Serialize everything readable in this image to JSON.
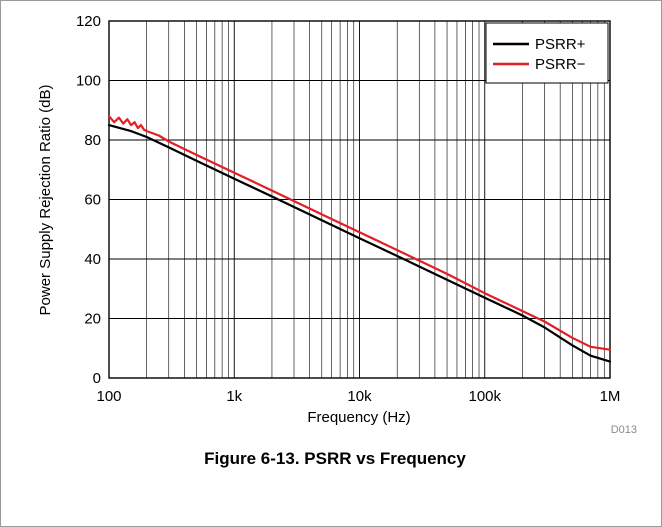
{
  "chart_data": {
    "type": "line",
    "title": "",
    "xlabel": "Frequency (Hz)",
    "ylabel": "Power Supply Rejection Ratio (dB)",
    "xscale": "log",
    "xlim": [
      100,
      1000000
    ],
    "ylim": [
      0,
      120
    ],
    "x_tick_values": [
      100,
      1000,
      10000,
      100000,
      1000000
    ],
    "x_tick_labels": [
      "100",
      "1k",
      "10k",
      "100k",
      "1M"
    ],
    "y_tick_values": [
      0,
      20,
      40,
      60,
      80,
      100,
      120
    ],
    "y_tick_labels": [
      "0",
      "20",
      "40",
      "60",
      "80",
      "100",
      "120"
    ],
    "grid": true,
    "legend_position": "top-right",
    "series": [
      {
        "name": "PSRR+",
        "color": "#000000",
        "x": [
          100,
          150,
          200,
          300,
          500,
          1000,
          2000,
          5000,
          10000,
          20000,
          50000,
          100000,
          200000,
          300000,
          500000,
          700000,
          1000000
        ],
        "y": [
          85,
          83,
          81,
          77.5,
          73,
          67,
          61,
          53,
          47,
          41,
          33,
          27,
          21,
          17,
          11,
          7.5,
          5.5
        ]
      },
      {
        "name": "PSRR−",
        "color": "#e31e24",
        "x": [
          100,
          110,
          120,
          130,
          140,
          150,
          160,
          170,
          180,
          190,
          200,
          250,
          300,
          500,
          1000,
          2000,
          5000,
          10000,
          20000,
          50000,
          100000,
          200000,
          300000,
          500000,
          700000,
          1000000
        ],
        "y": [
          88,
          86,
          87.5,
          85.5,
          87,
          85,
          86,
          84,
          85,
          83.5,
          83,
          81.5,
          79.5,
          75,
          69,
          63,
          55,
          49,
          43,
          35,
          28.5,
          22.5,
          19,
          13.5,
          10.5,
          9.5
        ]
      }
    ]
  },
  "figure": {
    "code": "D013",
    "caption": "Figure 6-13. PSRR vs Frequency"
  }
}
